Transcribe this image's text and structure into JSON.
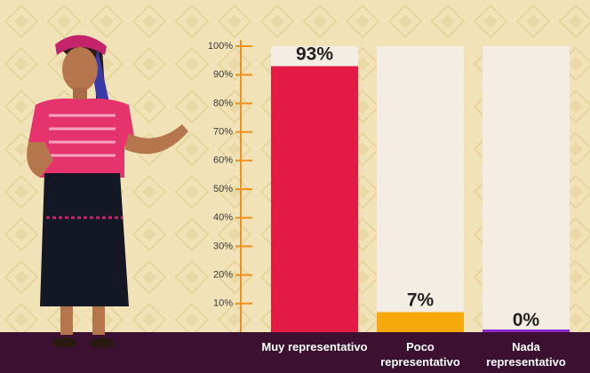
{
  "chart_data": {
    "type": "bar",
    "categories": [
      "Muy representativo",
      "Poco representativo",
      "Nada representativo"
    ],
    "values": [
      93,
      7,
      0
    ],
    "value_labels": [
      "93%",
      "7%",
      "0%"
    ],
    "colors": [
      "#e31b44",
      "#f6a90a",
      "#8e2bd0"
    ],
    "ylim": [
      0,
      100
    ],
    "yticks": [
      {
        "value": 10,
        "label": "10%"
      },
      {
        "value": 20,
        "label": "20%"
      },
      {
        "value": 30,
        "label": "30%"
      },
      {
        "value": 40,
        "label": "40%"
      },
      {
        "value": 50,
        "label": "50%"
      },
      {
        "value": 60,
        "label": "60%"
      },
      {
        "value": 70,
        "label": "70%"
      },
      {
        "value": 80,
        "label": "80%"
      },
      {
        "value": 90,
        "label": "90%"
      },
      {
        "value": 100,
        "label": "100%"
      }
    ]
  }
}
